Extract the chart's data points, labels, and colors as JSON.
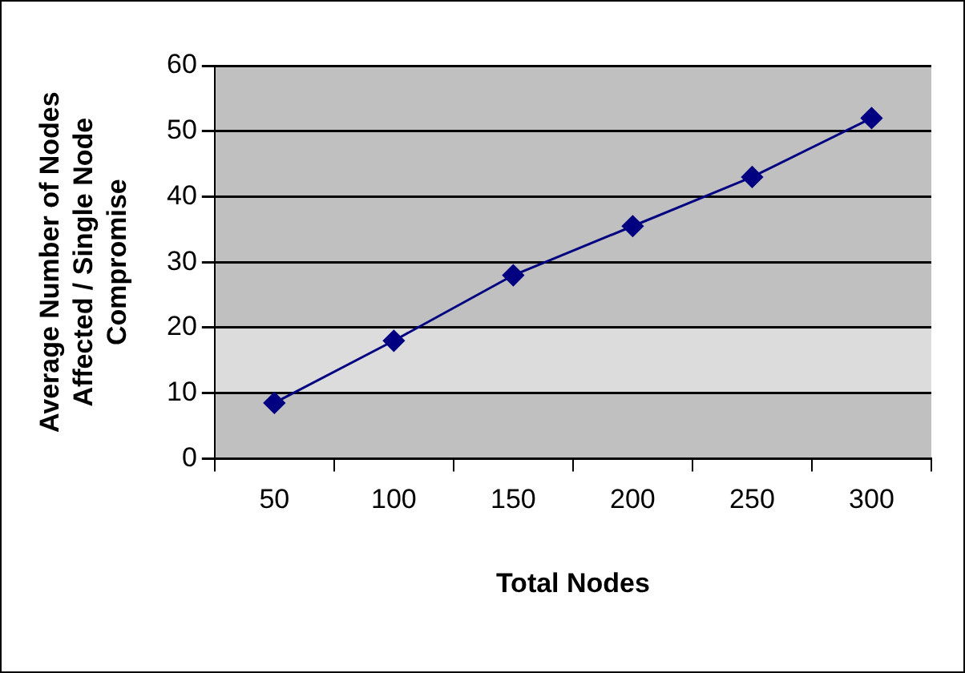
{
  "chart_data": {
    "type": "line",
    "xlabel": "Total Nodes",
    "ylabel": "Average Number of Nodes Affected / Single Node Compromise",
    "categories": [
      "50",
      "100",
      "150",
      "200",
      "250",
      "300"
    ],
    "series": [
      {
        "color": "#000080",
        "values": [
          8.5,
          18,
          28,
          35.5,
          43,
          52
        ]
      }
    ],
    "ylim": [
      0,
      60
    ],
    "yticks": [
      0,
      10,
      20,
      30,
      40,
      50,
      60
    ],
    "grid": "y",
    "legend": false,
    "marker": "diamond",
    "line_style": "solid",
    "bands": [
      {
        "axis": "y",
        "from": 10,
        "to": 20,
        "color": "#dcdcdc"
      }
    ]
  }
}
